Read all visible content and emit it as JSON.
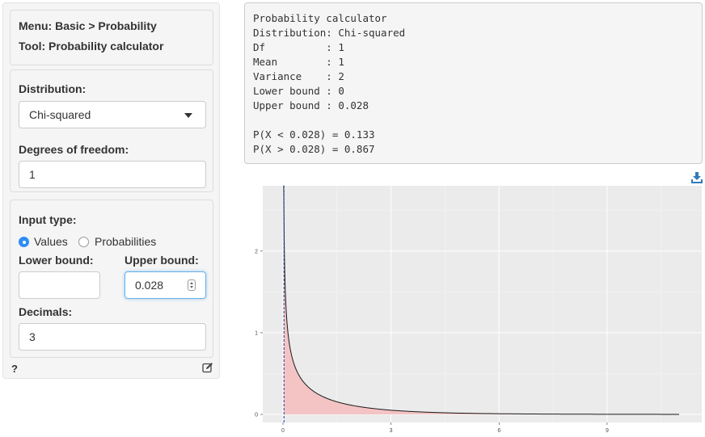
{
  "menu": {
    "menu_line": "Menu: Basic > Probability",
    "tool_line": "Tool: Probability calculator"
  },
  "distribution": {
    "label": "Distribution:",
    "selected": "Chi-squared"
  },
  "df": {
    "label": "Degrees of freedom:",
    "value": "1"
  },
  "input_type": {
    "label": "Input type:",
    "options": [
      "Values",
      "Probabilities"
    ],
    "selected": "Values"
  },
  "bounds": {
    "lower_label": "Lower bound:",
    "lower_value": "",
    "upper_label": "Upper bound:",
    "upper_value": "0.028"
  },
  "decimals": {
    "label": "Decimals:",
    "value": "3"
  },
  "help_label": "?",
  "icons": {
    "edit": "edit-icon",
    "download": "download-icon"
  },
  "output": {
    "lines": [
      "Probability calculator",
      "Distribution: Chi-squared",
      "Df          : 1",
      "Mean        : 1",
      "Variance    : 2",
      "Lower bound : 0",
      "Upper bound : 0.028",
      "",
      "P(X < 0.028) = 0.133",
      "P(X > 0.028) = 0.867"
    ]
  },
  "colors": {
    "accent": "#2f8df5",
    "fill": "#f4c4c4",
    "panel": "#ebebeb"
  },
  "chart_data": {
    "type": "area",
    "distribution": "chi-squared",
    "df": 1,
    "x_ticks": [
      "0",
      "3",
      "6",
      "9"
    ],
    "y_ticks": [
      "0",
      "1",
      "2"
    ],
    "xlim": [
      0,
      11
    ],
    "ylim": [
      0,
      2.8
    ],
    "cutoff": 0.028,
    "title": "",
    "xlabel": "",
    "ylabel": "",
    "grid": true
  }
}
